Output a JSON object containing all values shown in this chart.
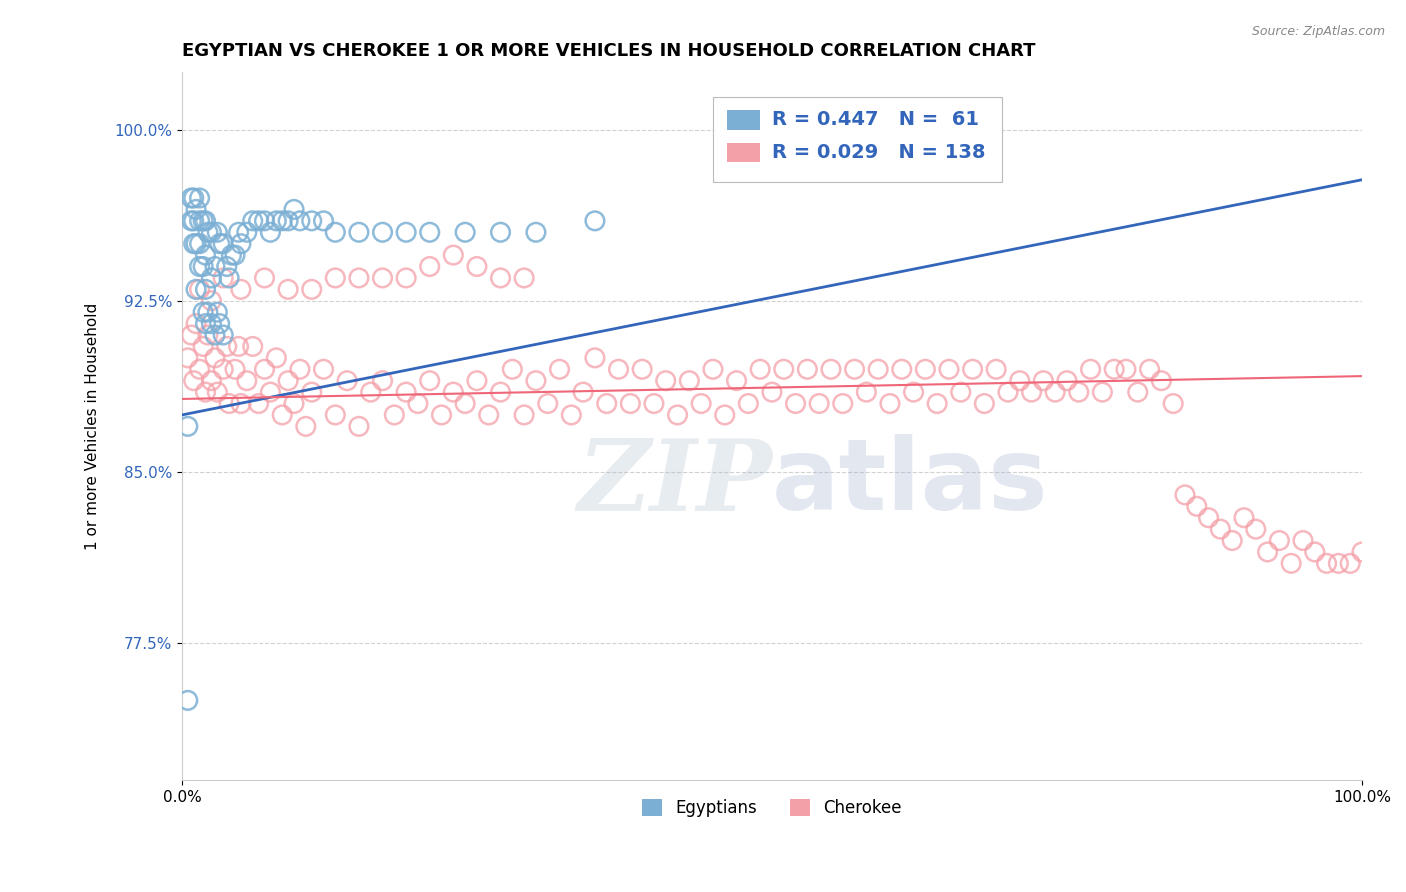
{
  "title": "EGYPTIAN VS CHEROKEE 1 OR MORE VEHICLES IN HOUSEHOLD CORRELATION CHART",
  "source_text": "Source: ZipAtlas.com",
  "ylabel": "1 or more Vehicles in Household",
  "xticklabels": [
    "0.0%",
    "100.0%"
  ],
  "yticklabels": [
    "77.5%",
    "85.0%",
    "92.5%",
    "100.0%"
  ],
  "ytick_values": [
    0.775,
    0.85,
    0.925,
    1.0
  ],
  "xlim": [
    0.0,
    1.0
  ],
  "ylim": [
    0.715,
    1.025
  ],
  "legend_R_egyptian": "R = 0.447",
  "legend_N_egyptian": "N =  61",
  "legend_R_cherokee": "R = 0.029",
  "legend_N_cherokee": "N = 138",
  "egyptian_color": "#7BAFD4",
  "cherokee_color": "#F4A0A8",
  "egyptian_line_color": "#3366BB",
  "cherokee_line_color": "#EE6677",
  "background_color": "#FFFFFF",
  "grid_color": "#CCCCCC",
  "watermark_color": "#AABBCC",
  "title_fontsize": 13,
  "axis_label_fontsize": 11,
  "tick_fontsize": 11,
  "legend_fontsize": 14,
  "egyptian_x": [
    0.005,
    0.005,
    0.008,
    0.008,
    0.01,
    0.01,
    0.01,
    0.012,
    0.012,
    0.012,
    0.015,
    0.015,
    0.015,
    0.015,
    0.018,
    0.018,
    0.018,
    0.02,
    0.02,
    0.02,
    0.02,
    0.022,
    0.022,
    0.025,
    0.025,
    0.025,
    0.028,
    0.028,
    0.03,
    0.03,
    0.032,
    0.032,
    0.035,
    0.035,
    0.038,
    0.04,
    0.042,
    0.045,
    0.048,
    0.05,
    0.055,
    0.06,
    0.065,
    0.07,
    0.075,
    0.08,
    0.085,
    0.09,
    0.095,
    0.1,
    0.11,
    0.12,
    0.13,
    0.15,
    0.17,
    0.19,
    0.21,
    0.24,
    0.27,
    0.3,
    0.35
  ],
  "egyptian_y": [
    0.75,
    0.87,
    0.96,
    0.97,
    0.95,
    0.96,
    0.97,
    0.93,
    0.95,
    0.965,
    0.94,
    0.95,
    0.96,
    0.97,
    0.92,
    0.94,
    0.96,
    0.915,
    0.93,
    0.945,
    0.96,
    0.92,
    0.955,
    0.915,
    0.935,
    0.955,
    0.91,
    0.94,
    0.92,
    0.955,
    0.915,
    0.95,
    0.91,
    0.95,
    0.94,
    0.935,
    0.945,
    0.945,
    0.955,
    0.95,
    0.955,
    0.96,
    0.96,
    0.96,
    0.955,
    0.96,
    0.96,
    0.96,
    0.965,
    0.96,
    0.96,
    0.96,
    0.955,
    0.955,
    0.955,
    0.955,
    0.955,
    0.955,
    0.955,
    0.955,
    0.96
  ],
  "cherokee_x": [
    0.005,
    0.008,
    0.01,
    0.012,
    0.015,
    0.018,
    0.02,
    0.022,
    0.025,
    0.028,
    0.03,
    0.035,
    0.038,
    0.04,
    0.045,
    0.048,
    0.05,
    0.055,
    0.06,
    0.065,
    0.07,
    0.075,
    0.08,
    0.085,
    0.09,
    0.095,
    0.1,
    0.105,
    0.11,
    0.12,
    0.13,
    0.14,
    0.15,
    0.16,
    0.17,
    0.18,
    0.19,
    0.2,
    0.21,
    0.22,
    0.23,
    0.24,
    0.25,
    0.26,
    0.27,
    0.28,
    0.29,
    0.3,
    0.31,
    0.32,
    0.33,
    0.34,
    0.35,
    0.36,
    0.37,
    0.38,
    0.39,
    0.4,
    0.41,
    0.42,
    0.43,
    0.44,
    0.45,
    0.46,
    0.47,
    0.48,
    0.49,
    0.5,
    0.51,
    0.52,
    0.53,
    0.54,
    0.55,
    0.56,
    0.57,
    0.58,
    0.59,
    0.6,
    0.61,
    0.62,
    0.63,
    0.64,
    0.65,
    0.66,
    0.67,
    0.68,
    0.69,
    0.7,
    0.71,
    0.72,
    0.73,
    0.74,
    0.75,
    0.76,
    0.77,
    0.78,
    0.79,
    0.8,
    0.81,
    0.82,
    0.83,
    0.84,
    0.85,
    0.86,
    0.87,
    0.88,
    0.89,
    0.9,
    0.91,
    0.92,
    0.93,
    0.94,
    0.95,
    0.96,
    0.97,
    0.98,
    0.99,
    1.0,
    0.025,
    0.035,
    0.015,
    0.05,
    0.07,
    0.09,
    0.11,
    0.13,
    0.15,
    0.17,
    0.19,
    0.21,
    0.23,
    0.25,
    0.27,
    0.29
  ],
  "cherokee_y": [
    0.9,
    0.91,
    0.89,
    0.915,
    0.895,
    0.905,
    0.885,
    0.91,
    0.89,
    0.9,
    0.885,
    0.895,
    0.905,
    0.88,
    0.895,
    0.905,
    0.88,
    0.89,
    0.905,
    0.88,
    0.895,
    0.885,
    0.9,
    0.875,
    0.89,
    0.88,
    0.895,
    0.87,
    0.885,
    0.895,
    0.875,
    0.89,
    0.87,
    0.885,
    0.89,
    0.875,
    0.885,
    0.88,
    0.89,
    0.875,
    0.885,
    0.88,
    0.89,
    0.875,
    0.885,
    0.895,
    0.875,
    0.89,
    0.88,
    0.895,
    0.875,
    0.885,
    0.9,
    0.88,
    0.895,
    0.88,
    0.895,
    0.88,
    0.89,
    0.875,
    0.89,
    0.88,
    0.895,
    0.875,
    0.89,
    0.88,
    0.895,
    0.885,
    0.895,
    0.88,
    0.895,
    0.88,
    0.895,
    0.88,
    0.895,
    0.885,
    0.895,
    0.88,
    0.895,
    0.885,
    0.895,
    0.88,
    0.895,
    0.885,
    0.895,
    0.88,
    0.895,
    0.885,
    0.89,
    0.885,
    0.89,
    0.885,
    0.89,
    0.885,
    0.895,
    0.885,
    0.895,
    0.895,
    0.885,
    0.895,
    0.89,
    0.88,
    0.84,
    0.835,
    0.83,
    0.825,
    0.82,
    0.83,
    0.825,
    0.815,
    0.82,
    0.81,
    0.82,
    0.815,
    0.81,
    0.81,
    0.81,
    0.815,
    0.925,
    0.935,
    0.93,
    0.93,
    0.935,
    0.93,
    0.93,
    0.935,
    0.935,
    0.935,
    0.935,
    0.94,
    0.945,
    0.94,
    0.935,
    0.935
  ]
}
